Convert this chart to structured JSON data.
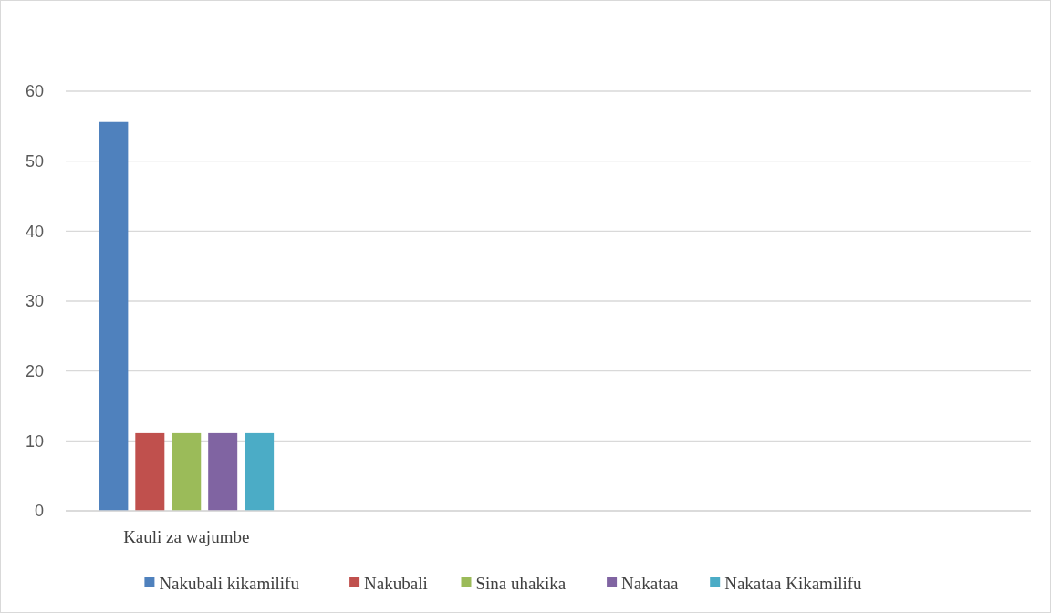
{
  "chart_data": {
    "type": "bar",
    "categories": [
      "Kauli za wajumbe",
      null,
      null,
      null
    ],
    "series": [
      {
        "name": "Nakubali kikamilifu",
        "color": "#4f81bd",
        "values": [
          55.6,
          null,
          null,
          null
        ]
      },
      {
        "name": "Nakubali",
        "color": "#c0504d",
        "values": [
          11.1,
          null,
          null,
          null
        ]
      },
      {
        "name": "Sina uhakika",
        "color": "#9bbb59",
        "values": [
          11.1,
          null,
          null,
          null
        ]
      },
      {
        "name": "Nakataa",
        "color": "#8064a2",
        "values": [
          11.1,
          null,
          null,
          null
        ]
      },
      {
        "name": "Nakataa Kikamilifu",
        "color": "#4bacc6",
        "values": [
          11.1,
          null,
          null,
          null
        ]
      }
    ],
    "ylim": [
      0,
      60
    ],
    "yticks": [
      0,
      10,
      20,
      30,
      40,
      50,
      60
    ],
    "grid": "y",
    "legend": "bottom"
  }
}
